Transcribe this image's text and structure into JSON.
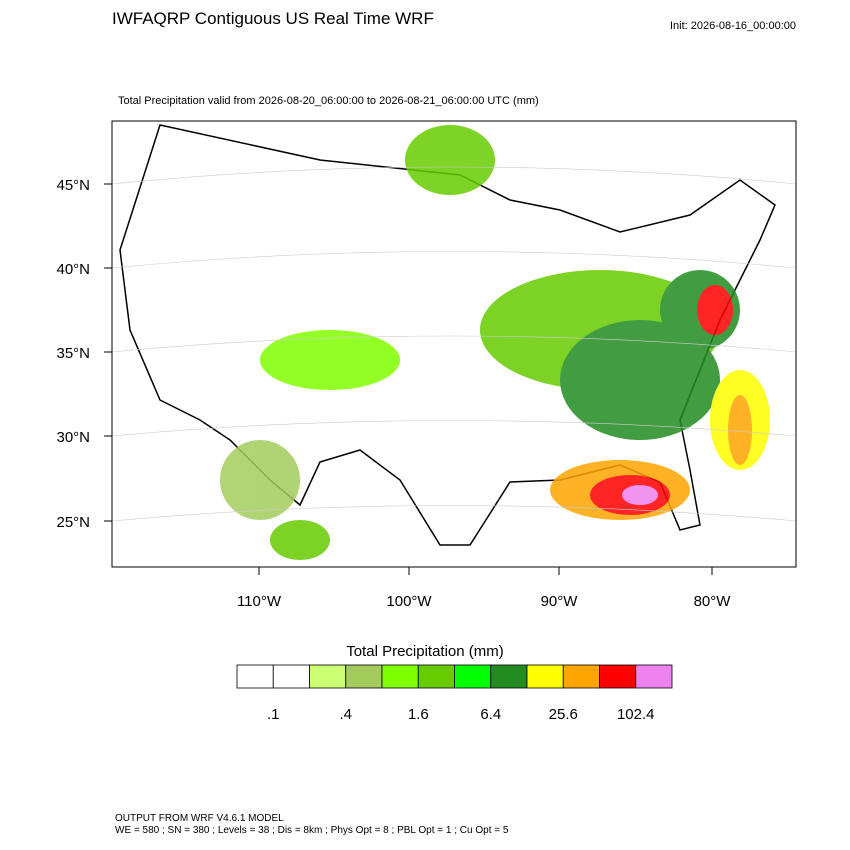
{
  "header": {
    "title": "IWFAQRP Contiguous US Real Time WRF",
    "init": "Init: 2026-08-16_00:00:00",
    "subtitle": "Total Precipitation valid from 2026-08-20_06:00:00 to 2026-08-21_06:00:00 UTC   (mm)"
  },
  "map": {
    "lat_labels": [
      "45°N",
      "40°N",
      "35°N",
      "30°N",
      "25°N"
    ],
    "lon_labels": [
      "110°W",
      "100°W",
      "90°W",
      "80°W"
    ]
  },
  "colorbar": {
    "title": "Total Precipitation  (mm)",
    "colors": [
      "#ffffff",
      "#ffffff",
      "#ccff73",
      "#a3cc5c",
      "#80ff00",
      "#66cc00",
      "#00ff00",
      "#228b22",
      "#ffff00",
      "#ffa500",
      "#ff0000",
      "#ee82ee"
    ],
    "labels": [
      ".1",
      ".4",
      "1.6",
      "6.4",
      "25.6",
      "102.4"
    ]
  },
  "footer": {
    "line1": "OUTPUT FROM WRF V4.6.1 MODEL",
    "line2": "WE = 580 ; SN = 380 ; Levels = 38 ; Dis = 8km ; Phys Opt = 8 ; PBL Opt = 1 ; Cu Opt = 5"
  }
}
